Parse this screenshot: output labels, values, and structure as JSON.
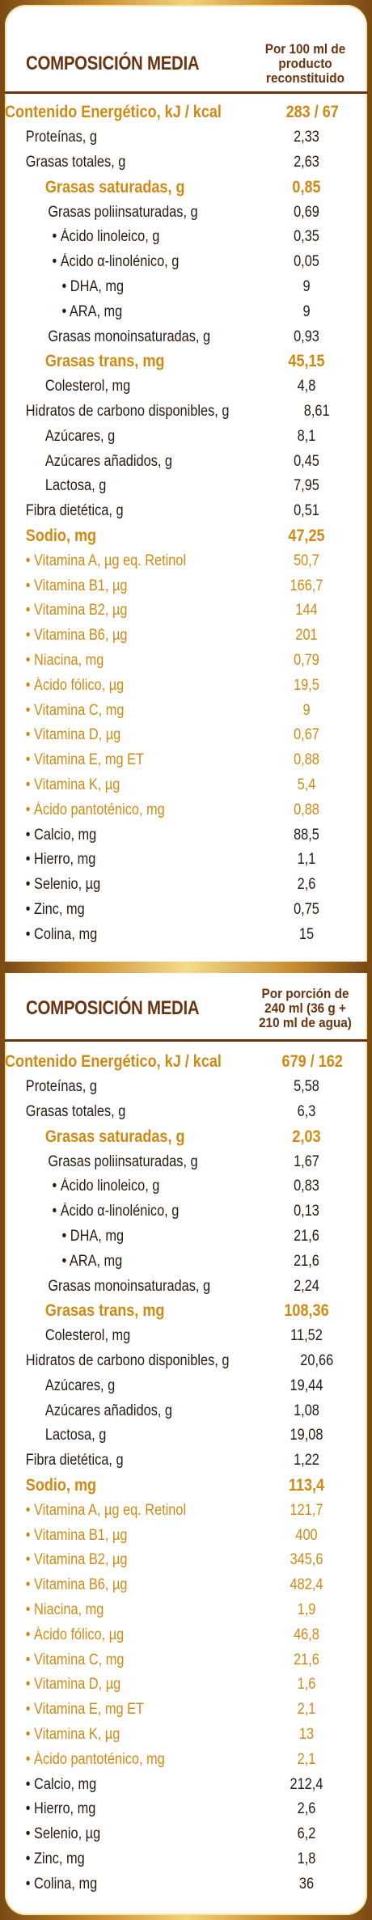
{
  "table1": {
    "title": "COMPOSICIÓN MEDIA",
    "column_title": "Por 100 ml de producto reconstituido",
    "rows": [
      {
        "label": "Contenido Energético, kJ / kcal",
        "value": "283 / 67"
      },
      {
        "label": "Proteínas, g",
        "value": "2,33"
      },
      {
        "label": "Grasas totales, g",
        "value": "2,63"
      },
      {
        "label": "Grasas saturadas, g",
        "value": "0,85"
      },
      {
        "label": "Grasas poliinsaturadas, g",
        "value": "0,69"
      },
      {
        "label": "• Ácido linoleico, g",
        "value": "0,35"
      },
      {
        "label": "• Ácido α-linolénico, g",
        "value": "0,05"
      },
      {
        "label": "• DHA, mg",
        "value": "9"
      },
      {
        "label": "• ARA, mg",
        "value": "9"
      },
      {
        "label": "Grasas monoinsaturadas, g",
        "value": "0,93"
      },
      {
        "label": "Grasas trans, mg",
        "value": "45,15"
      },
      {
        "label": "Colesterol, mg",
        "value": "4,8"
      },
      {
        "label": "Hidratos de carbono disponibles, g",
        "value": "8,61"
      },
      {
        "label": "Azúcares, g",
        "value": "8,1"
      },
      {
        "label": "Azúcares añadidos, g",
        "value": "0,45"
      },
      {
        "label": "Lactosa, g",
        "value": "7,95"
      },
      {
        "label": "Fibra dietética, g",
        "value": "0,51"
      },
      {
        "label": "Sodio, mg",
        "value": "47,25"
      },
      {
        "label": "• Vitamina A, µg eq. Retinol",
        "value": "50,7"
      },
      {
        "label": "• Vitamina B1, µg",
        "value": "166,7"
      },
      {
        "label": "• Vitamina B2, µg",
        "value": "144"
      },
      {
        "label": "• Vitamina B6, µg",
        "value": "201"
      },
      {
        "label": "• Niacina, mg",
        "value": "0,79"
      },
      {
        "label": "• Ácido fólico, µg",
        "value": "19,5"
      },
      {
        "label": "• Vitamina C, mg",
        "value": "9"
      },
      {
        "label": "• Vitamina D, µg",
        "value": "0,67"
      },
      {
        "label": "• Vitamina E, mg ET",
        "value": "0,88"
      },
      {
        "label": "• Vitamina K, µg",
        "value": "5,4"
      },
      {
        "label": "• Ácido pantoténico, mg",
        "value": "0,88"
      },
      {
        "label": "• Calcio, mg",
        "value": "88,5"
      },
      {
        "label": "• Hierro, mg",
        "value": "1,1"
      },
      {
        "label": "• Selenio, µg",
        "value": "2,6"
      },
      {
        "label": "• Zinc, mg",
        "value": "0,75"
      },
      {
        "label": "• Colina, mg",
        "value": "15"
      }
    ]
  },
  "table2": {
    "title": "COMPOSICIÓN MEDIA",
    "column_title": "Por porción de 240 ml (36 g + 210 ml de agua)",
    "rows": [
      {
        "label": "Contenido Energético, kJ / kcal",
        "value": "679 / 162"
      },
      {
        "label": "Proteínas, g",
        "value": "5,58"
      },
      {
        "label": "Grasas totales, g",
        "value": "6,3"
      },
      {
        "label": "Grasas saturadas, g",
        "value": "2,03"
      },
      {
        "label": "Grasas poliinsaturadas, g",
        "value": "1,67"
      },
      {
        "label": "• Ácido linoleico, g",
        "value": "0,83"
      },
      {
        "label": "• Ácido α-linolénico, g",
        "value": "0,13"
      },
      {
        "label": "• DHA, mg",
        "value": "21,6"
      },
      {
        "label": "• ARA, mg",
        "value": "21,6"
      },
      {
        "label": "Grasas monoinsaturadas, g",
        "value": "2,24"
      },
      {
        "label": "Grasas trans, mg",
        "value": "108,36"
      },
      {
        "label": "Colesterol, mg",
        "value": "11,52"
      },
      {
        "label": "Hidratos de carbono disponibles, g",
        "value": "20,66"
      },
      {
        "label": "Azúcares, g",
        "value": "19,44"
      },
      {
        "label": "Azúcares añadidos, g",
        "value": "1,08"
      },
      {
        "label": "Lactosa, g",
        "value": "19,08"
      },
      {
        "label": "Fibra dietética, g",
        "value": "1,22"
      },
      {
        "label": "Sodio, mg",
        "value": "113,4"
      },
      {
        "label": "• Vitamina A, µg eq. Retinol",
        "value": "121,7"
      },
      {
        "label": "• Vitamina B1, µg",
        "value": "400"
      },
      {
        "label": "• Vitamina B2, µg",
        "value": "345,6"
      },
      {
        "label": "• Vitamina B6, µg",
        "value": "482,4"
      },
      {
        "label": "• Niacina, mg",
        "value": "1,9"
      },
      {
        "label": "• Ácido fólico, µg",
        "value": "46,8"
      },
      {
        "label": "• Vitamina C, mg",
        "value": "21,6"
      },
      {
        "label": "• Vitamina D, µg",
        "value": "1,6"
      },
      {
        "label": "• Vitamina E, mg ET",
        "value": "2,1"
      },
      {
        "label": "• Vitamina K, µg",
        "value": "13"
      },
      {
        "label": "• Ácido pantoténico, mg",
        "value": "2,1"
      },
      {
        "label": "• Calcio, mg",
        "value": "212,4"
      },
      {
        "label": "• Hierro, mg",
        "value": "2,6"
      },
      {
        "label": "• Selenio, µg",
        "value": "6,2"
      },
      {
        "label": "• Zinc, mg",
        "value": "1,8"
      },
      {
        "label": "• Colina, mg",
        "value": "36"
      }
    ]
  },
  "colors": {
    "header_brown": "#6b3410",
    "highlight_gold": "#d08a14",
    "text": "#2a1a10",
    "frame_gold": "#c88b2e"
  }
}
